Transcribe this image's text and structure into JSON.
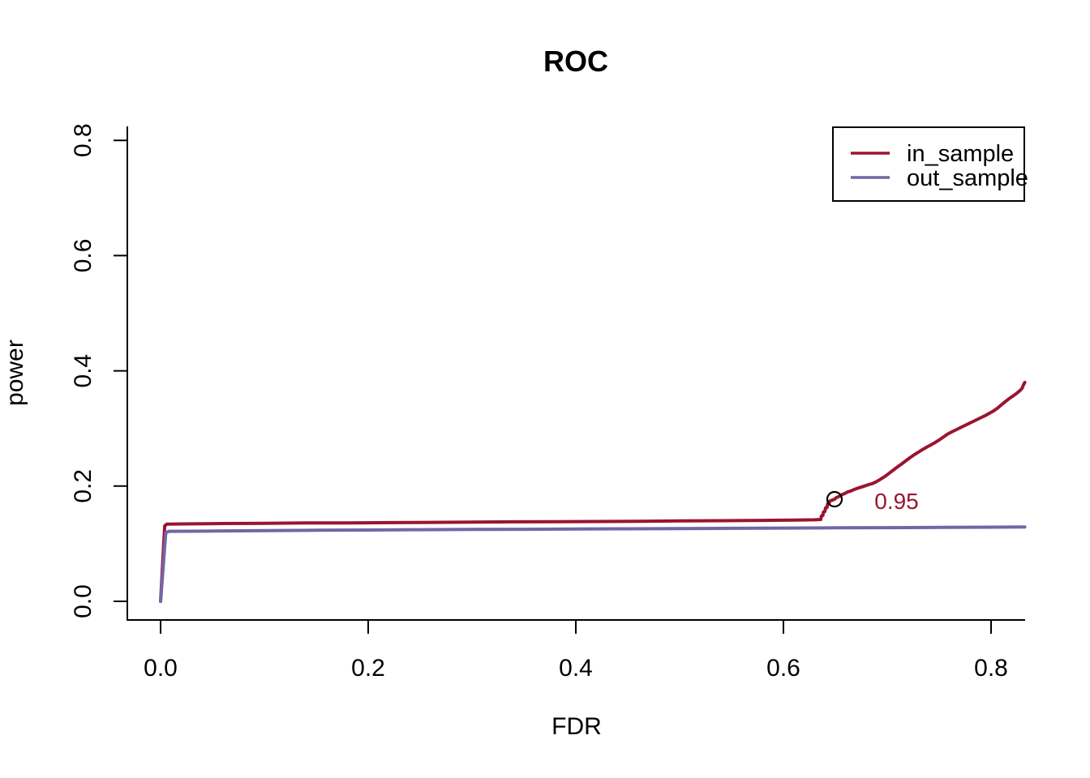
{
  "figure": {
    "background": "#FFFFFF"
  },
  "chart_data": {
    "type": "line",
    "title": "ROC",
    "xlabel": "FDR",
    "ylabel": "power",
    "xlim": [
      -0.033,
      0.833
    ],
    "ylim": [
      -0.032,
      0.824
    ],
    "grid": false,
    "x_tick_values": [
      0.0,
      0.2,
      0.4,
      0.6,
      0.8
    ],
    "x_tick_labels": [
      "0.0",
      "0.2",
      "0.4",
      "0.6",
      "0.8"
    ],
    "y_tick_values": [
      0.0,
      0.2,
      0.4,
      0.6,
      0.8
    ],
    "y_tick_labels": [
      "0.0",
      "0.2",
      "0.4",
      "0.6",
      "0.8"
    ],
    "legend": {
      "position": "topright",
      "entries": [
        "in_sample",
        "out_sample"
      ]
    },
    "series": [
      {
        "name": "in_sample",
        "color": "#9B1430",
        "points": [
          [
            0.0,
            0.0
          ],
          [
            0.004,
            0.131
          ],
          [
            0.006,
            0.134
          ],
          [
            0.03,
            0.1345
          ],
          [
            0.06,
            0.135
          ],
          [
            0.1,
            0.1355
          ],
          [
            0.14,
            0.136
          ],
          [
            0.18,
            0.1362
          ],
          [
            0.22,
            0.1365
          ],
          [
            0.26,
            0.137
          ],
          [
            0.3,
            0.1375
          ],
          [
            0.34,
            0.138
          ],
          [
            0.38,
            0.1382
          ],
          [
            0.42,
            0.1385
          ],
          [
            0.46,
            0.139
          ],
          [
            0.5,
            0.1395
          ],
          [
            0.54,
            0.14
          ],
          [
            0.58,
            0.1405
          ],
          [
            0.61,
            0.141
          ],
          [
            0.63,
            0.1415
          ],
          [
            0.636,
            0.142
          ],
          [
            0.6365,
            0.148
          ],
          [
            0.638,
            0.149
          ],
          [
            0.6385,
            0.155
          ],
          [
            0.64,
            0.156
          ],
          [
            0.6405,
            0.162
          ],
          [
            0.642,
            0.163
          ],
          [
            0.6425,
            0.169
          ],
          [
            0.644,
            0.17
          ],
          [
            0.6445,
            0.174
          ],
          [
            0.646,
            0.175
          ],
          [
            0.6492,
            0.1772
          ],
          [
            0.651,
            0.18
          ],
          [
            0.6535,
            0.182
          ],
          [
            0.656,
            0.185
          ],
          [
            0.659,
            0.187
          ],
          [
            0.662,
            0.19
          ],
          [
            0.665,
            0.1915
          ],
          [
            0.668,
            0.194
          ],
          [
            0.671,
            0.196
          ],
          [
            0.6745,
            0.198
          ],
          [
            0.678,
            0.2
          ],
          [
            0.682,
            0.2025
          ],
          [
            0.686,
            0.2045
          ],
          [
            0.69,
            0.208
          ],
          [
            0.694,
            0.2125
          ],
          [
            0.698,
            0.217
          ],
          [
            0.702,
            0.2225
          ],
          [
            0.706,
            0.228
          ],
          [
            0.71,
            0.2335
          ],
          [
            0.714,
            0.2385
          ],
          [
            0.718,
            0.244
          ],
          [
            0.722,
            0.2495
          ],
          [
            0.726,
            0.2545
          ],
          [
            0.73,
            0.259
          ],
          [
            0.734,
            0.2635
          ],
          [
            0.738,
            0.2675
          ],
          [
            0.742,
            0.2715
          ],
          [
            0.746,
            0.2755
          ],
          [
            0.75,
            0.28
          ],
          [
            0.754,
            0.285
          ],
          [
            0.758,
            0.29
          ],
          [
            0.762,
            0.294
          ],
          [
            0.766,
            0.2975
          ],
          [
            0.77,
            0.301
          ],
          [
            0.774,
            0.3045
          ],
          [
            0.778,
            0.308
          ],
          [
            0.782,
            0.3115
          ],
          [
            0.786,
            0.315
          ],
          [
            0.79,
            0.3185
          ],
          [
            0.794,
            0.322
          ],
          [
            0.798,
            0.326
          ],
          [
            0.802,
            0.33
          ],
          [
            0.806,
            0.335
          ],
          [
            0.81,
            0.341
          ],
          [
            0.814,
            0.347
          ],
          [
            0.818,
            0.3525
          ],
          [
            0.822,
            0.3575
          ],
          [
            0.825,
            0.3615
          ],
          [
            0.828,
            0.366
          ],
          [
            0.83,
            0.37
          ],
          [
            0.831,
            0.375
          ],
          [
            0.8325,
            0.38
          ]
        ]
      },
      {
        "name": "out_sample",
        "color": "#7266A6",
        "points": [
          [
            0.0,
            0.0
          ],
          [
            0.005,
            0.119
          ],
          [
            0.008,
            0.1215
          ],
          [
            0.05,
            0.122
          ],
          [
            0.1,
            0.1228
          ],
          [
            0.15,
            0.1233
          ],
          [
            0.2,
            0.1238
          ],
          [
            0.25,
            0.1243
          ],
          [
            0.3,
            0.1247
          ],
          [
            0.35,
            0.1251
          ],
          [
            0.4,
            0.1255
          ],
          [
            0.45,
            0.1259
          ],
          [
            0.5,
            0.1263
          ],
          [
            0.55,
            0.1267
          ],
          [
            0.6,
            0.1271
          ],
          [
            0.65,
            0.1275
          ],
          [
            0.7,
            0.1279
          ],
          [
            0.75,
            0.1283
          ],
          [
            0.8,
            0.1287
          ],
          [
            0.8325,
            0.129
          ]
        ]
      }
    ],
    "annotation": {
      "text": "0.95",
      "color": "#9B1430",
      "marker": "open-circle",
      "marker_x": 0.6492,
      "marker_y": 0.1772,
      "text_x": 0.709,
      "text_y": 0.176
    }
  }
}
